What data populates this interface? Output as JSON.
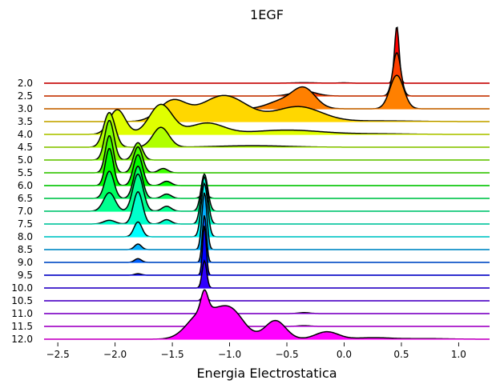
{
  "chart_data": {
    "type": "area",
    "title": "1EGF",
    "xlabel": "Energia Electrostatica",
    "ylabel": "",
    "xlim": [
      -2.62,
      1.27
    ],
    "xticks": [
      -2.5,
      -2.0,
      -1.5,
      -1.0,
      -0.5,
      0.0,
      0.5,
      1.0
    ],
    "xtick_labels": [
      "−2.5",
      "−2.0",
      "−1.5",
      "−1.0",
      "−0.5",
      "0.0",
      "0.5",
      "1.0"
    ],
    "grid": false,
    "legend": "none",
    "series": [
      {
        "label": "2.0",
        "color": "#ff0000",
        "peaks": [
          [
            0.46,
            0.02,
            4.6
          ],
          [
            -0.35,
            0.1,
            0.04
          ],
          [
            0.0,
            0.05,
            0.03
          ]
        ]
      },
      {
        "label": "2.5",
        "color": "#ff4000",
        "peaks": [
          [
            0.46,
            0.035,
            3.5
          ],
          [
            -0.35,
            0.1,
            0.4
          ]
        ]
      },
      {
        "label": "3.0",
        "color": "#ff8000",
        "peaks": [
          [
            0.46,
            0.06,
            2.7
          ],
          [
            -0.35,
            0.1,
            1.6
          ],
          [
            -0.55,
            0.12,
            0.6
          ]
        ]
      },
      {
        "label": "3.5",
        "color": "#ffd700",
        "peaks": [
          [
            -1.5,
            0.12,
            1.6
          ],
          [
            -1.05,
            0.2,
            2.1
          ],
          [
            -0.4,
            0.2,
            1.2
          ],
          [
            0.3,
            0.3,
            0.06
          ]
        ]
      },
      {
        "label": "4.0",
        "color": "#e0ff00",
        "peaks": [
          [
            -1.98,
            0.07,
            2.0
          ],
          [
            -1.6,
            0.1,
            2.4
          ],
          [
            -1.2,
            0.15,
            0.9
          ],
          [
            -0.5,
            0.3,
            0.35
          ],
          [
            0.3,
            0.25,
            0.05
          ]
        ]
      },
      {
        "label": "4.5",
        "color": "#b0ff00",
        "peaks": [
          [
            -2.05,
            0.05,
            2.8
          ],
          [
            -1.6,
            0.07,
            1.6
          ],
          [
            -0.8,
            0.3,
            0.12
          ]
        ]
      },
      {
        "label": "5.0",
        "color": "#80ff00",
        "peaks": [
          [
            -2.05,
            0.04,
            3.2
          ],
          [
            -1.8,
            0.04,
            1.4
          ]
        ]
      },
      {
        "label": "5.5",
        "color": "#40ff00",
        "peaks": [
          [
            -2.05,
            0.035,
            3.0
          ],
          [
            -1.8,
            0.04,
            2.1
          ],
          [
            -1.58,
            0.04,
            0.35
          ]
        ]
      },
      {
        "label": "6.0",
        "color": "#00ff00",
        "peaks": [
          [
            -2.05,
            0.035,
            3.0
          ],
          [
            -1.8,
            0.04,
            2.5
          ],
          [
            -1.55,
            0.04,
            0.35
          ]
        ]
      },
      {
        "label": "6.5",
        "color": "#00ff60",
        "peaks": [
          [
            -2.05,
            0.04,
            2.2
          ],
          [
            -1.8,
            0.04,
            2.6
          ],
          [
            -1.55,
            0.04,
            0.35
          ],
          [
            -1.22,
            0.03,
            0.4
          ]
        ]
      },
      {
        "label": "7.0",
        "color": "#00ff90",
        "peaks": [
          [
            -2.05,
            0.05,
            1.5
          ],
          [
            -1.8,
            0.045,
            3.0
          ],
          [
            -1.55,
            0.04,
            0.4
          ],
          [
            -1.22,
            0.03,
            3.0
          ]
        ]
      },
      {
        "label": "7.5",
        "color": "#00ffcc",
        "peaks": [
          [
            -2.05,
            0.05,
            0.3
          ],
          [
            -1.8,
            0.04,
            2.6
          ],
          [
            -1.55,
            0.04,
            0.35
          ],
          [
            -1.22,
            0.03,
            3.8
          ]
        ]
      },
      {
        "label": "8.0",
        "color": "#00ffff",
        "peaks": [
          [
            -1.8,
            0.035,
            1.2
          ],
          [
            -1.22,
            0.028,
            4.3
          ]
        ]
      },
      {
        "label": "8.5",
        "color": "#00b0ff",
        "peaks": [
          [
            -1.8,
            0.03,
            0.45
          ],
          [
            -1.22,
            0.022,
            4.6
          ]
        ]
      },
      {
        "label": "9.0",
        "color": "#0060ff",
        "peaks": [
          [
            -1.8,
            0.03,
            0.3
          ],
          [
            -1.22,
            0.018,
            3.8
          ]
        ]
      },
      {
        "label": "9.5",
        "color": "#0000ff",
        "peaks": [
          [
            -1.8,
            0.03,
            0.12
          ],
          [
            -1.22,
            0.016,
            4.0
          ]
        ]
      },
      {
        "label": "10.0",
        "color": "#3000ff",
        "peaks": [
          [
            -1.22,
            0.02,
            2.2
          ]
        ]
      },
      {
        "label": "10.5",
        "color": "#6000ff",
        "peaks": [
          [
            -1.22,
            0.02,
            0.6
          ]
        ]
      },
      {
        "label": "11.0",
        "color": "#a000ff",
        "peaks": [
          [
            -1.22,
            0.02,
            0.2
          ],
          [
            -0.35,
            0.05,
            0.08
          ]
        ]
      },
      {
        "label": "11.5",
        "color": "#d000ff",
        "peaks": [
          [
            -1.22,
            0.03,
            0.6
          ],
          [
            -0.35,
            0.05,
            0.06
          ]
        ]
      },
      {
        "label": "12.0",
        "color": "#ff00ff",
        "peaks": [
          [
            -1.22,
            0.03,
            1.6
          ],
          [
            -1.25,
            0.12,
            2.0
          ],
          [
            -1.0,
            0.12,
            2.4
          ],
          [
            -0.6,
            0.09,
            1.5
          ],
          [
            -0.15,
            0.1,
            0.6
          ],
          [
            0.25,
            0.15,
            0.12
          ],
          [
            0.7,
            0.2,
            0.05
          ]
        ]
      }
    ]
  }
}
